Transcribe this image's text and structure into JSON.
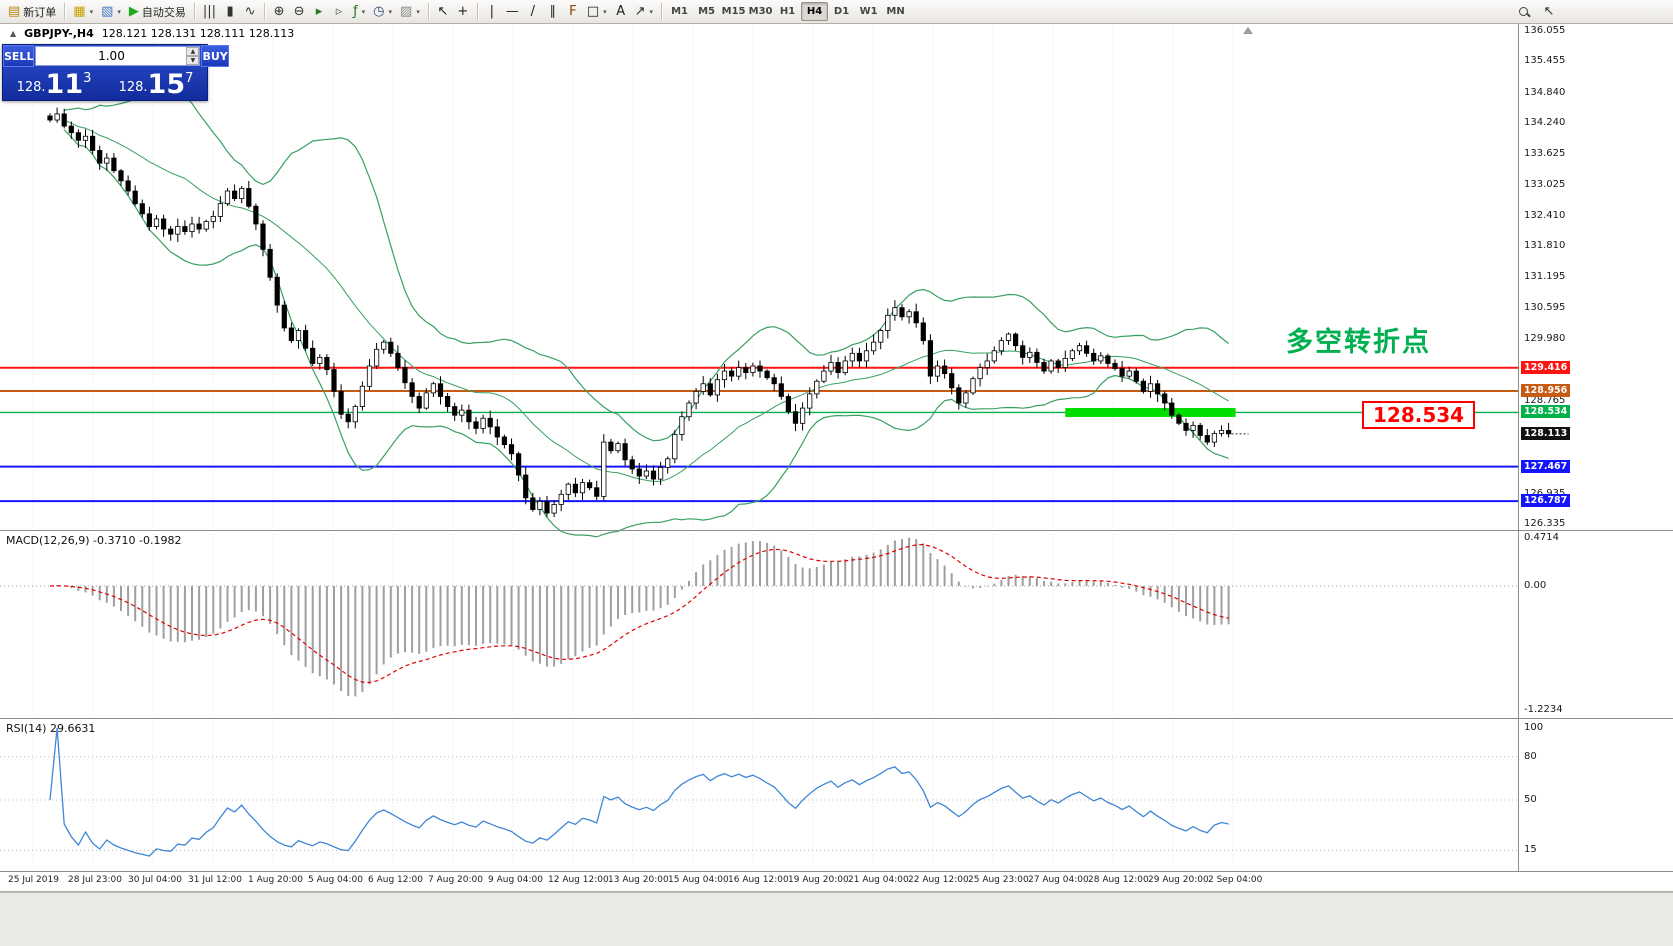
{
  "toolbar": {
    "groups": [
      {
        "items": [
          {
            "name": "new-order",
            "glyph": "▤",
            "glyph_color": "#b8860b",
            "label": "新订单"
          }
        ]
      },
      {
        "items": [
          {
            "name": "new-chart",
            "glyph": "▦",
            "glyph_color": "#c8a000",
            "caret": true
          },
          {
            "name": "profiles",
            "glyph": "▧",
            "glyph_color": "#4477cc",
            "caret": true
          },
          {
            "name": "autotrading",
            "glyph": "▶",
            "glyph_color": "#1daa1d",
            "label": "自动交易"
          }
        ]
      },
      {
        "items": [
          {
            "name": "chart-bars",
            "glyph": "|||",
            "glyph_color": "#333333"
          },
          {
            "name": "chart-candles",
            "glyph": "▮",
            "glyph_color": "#333333"
          },
          {
            "name": "chart-line",
            "glyph": "∿",
            "glyph_color": "#333333"
          }
        ]
      },
      {
        "items": [
          {
            "name": "zoom-in",
            "glyph": "⊕",
            "glyph_color": "#333333"
          },
          {
            "name": "zoom-out",
            "glyph": "⊖",
            "glyph_color": "#333333"
          },
          {
            "name": "auto-scroll",
            "glyph": "▸",
            "glyph_color": "#2a7a2a"
          },
          {
            "name": "chart-shift",
            "glyph": "▹",
            "glyph_color": "#666666"
          },
          {
            "name": "indicators",
            "glyph": "ƒ",
            "glyph_color": "#207020",
            "caret": true
          },
          {
            "name": "periods",
            "glyph": "◷",
            "glyph_color": "#334477",
            "caret": true
          },
          {
            "name": "templates",
            "glyph": "▨",
            "glyph_color": "#888888",
            "caret": true
          }
        ]
      },
      {
        "items": [
          {
            "name": "cursor",
            "glyph": "↖",
            "glyph_color": "#222222"
          },
          {
            "name": "crosshair",
            "glyph": "+",
            "glyph_color": "#222222"
          }
        ]
      },
      {
        "items": [
          {
            "name": "vertical-line",
            "glyph": "|",
            "glyph_color": "#222222"
          },
          {
            "name": "horizontal-line",
            "glyph": "—",
            "glyph_color": "#222222"
          },
          {
            "name": "trendline",
            "glyph": "/",
            "glyph_color": "#222222"
          },
          {
            "name": "channel",
            "glyph": "∥",
            "glyph_color": "#222222"
          },
          {
            "name": "fibonacci",
            "glyph": "F",
            "glyph_color": "#884400"
          },
          {
            "name": "shapes",
            "glyph": "□",
            "glyph_color": "#222222",
            "caret": true
          },
          {
            "name": "text-label",
            "glyph": "A",
            "glyph_color": "#222222"
          },
          {
            "name": "arrows",
            "glyph": "↗",
            "glyph_color": "#222222",
            "caret": true
          }
        ]
      }
    ],
    "timeframes": [
      "M1",
      "M5",
      "M15",
      "M30",
      "H1",
      "H4",
      "D1",
      "W1",
      "MN"
    ],
    "active_timeframe": "H4"
  },
  "symbol_header": {
    "title": "GBPJPY-,H4",
    "ohlc": "128.121 128.131 128.111 128.113"
  },
  "trade_panel": {
    "sell_label": "SELL",
    "buy_label": "BUY",
    "volume": "1.00",
    "sell_price": {
      "prefix": "128.",
      "big": "11",
      "sup": "3"
    },
    "buy_price": {
      "prefix": "128.",
      "big": "15",
      "sup": "7"
    }
  },
  "annotations": {
    "turning_point": "多空转折点",
    "level_callout": "128.534"
  },
  "indicators": {
    "macd_label": "MACD(12,26,9) -0.3710 -0.1982",
    "rsi_label": "RSI(14) 29.6631"
  },
  "price_scale": {
    "plain_labels": [
      "136.055",
      "135.455",
      "134.840",
      "134.240",
      "133.625",
      "133.025",
      "132.410",
      "131.810",
      "131.195",
      "130.595",
      "129.980",
      "128.765",
      "126.935",
      "126.335"
    ],
    "badges": [
      {
        "value": "129.416",
        "color": "#ff1414"
      },
      {
        "value": "128.956",
        "color": "#c65b11"
      },
      {
        "value": "128.534",
        "color": "#00b14a"
      },
      {
        "value": "128.113",
        "color": "#111111"
      },
      {
        "value": "127.467",
        "color": "#1414ff"
      },
      {
        "value": "126.787",
        "color": "#1414ff"
      }
    ]
  },
  "macd_scale": {
    "max": "0.4714",
    "zero": "0.00",
    "min": "-1.2234"
  },
  "rsi_scale": {
    "labels": [
      "100",
      "80",
      "50",
      "15"
    ]
  },
  "time_axis": [
    "25 Jul 2019",
    "28 Jul 23:00",
    "30 Jul 04:00",
    "31 Jul 12:00",
    "1 Aug 20:00",
    "5 Aug 04:00",
    "6 Aug 12:00",
    "7 Aug 20:00",
    "9 Aug 04:00",
    "12 Aug 12:00",
    "13 Aug 20:00",
    "15 Aug 04:00",
    "16 Aug 12:00",
    "19 Aug 20:00",
    "21 Aug 04:00",
    "22 Aug 12:00",
    "25 Aug 23:00",
    "27 Aug 04:00",
    "28 Aug 12:00",
    "29 Aug 20:00",
    "2 Sep 04:00"
  ],
  "chart_data": {
    "type": "candlestick",
    "symbol": "GBPJPY-",
    "timeframe": "H4",
    "title": "GBPJPY-,H4",
    "ohlc_display": {
      "open": "128.121",
      "high": "128.131",
      "low": "128.111",
      "close": "128.113"
    },
    "last_price": 128.113,
    "visible_price_range": [
      126.335,
      136.055
    ],
    "closes": [
      134.3,
      134.42,
      134.18,
      134.05,
      133.9,
      133.98,
      133.7,
      133.45,
      133.55,
      133.3,
      133.1,
      132.9,
      132.65,
      132.45,
      132.2,
      132.35,
      132.15,
      132.05,
      132.2,
      132.1,
      132.25,
      132.15,
      132.3,
      132.4,
      132.65,
      132.9,
      132.75,
      132.95,
      132.6,
      132.25,
      131.75,
      131.2,
      130.65,
      130.2,
      129.95,
      130.15,
      129.8,
      129.5,
      129.62,
      129.38,
      128.95,
      128.5,
      128.35,
      128.65,
      129.05,
      129.45,
      129.78,
      129.92,
      129.7,
      129.42,
      129.12,
      128.85,
      128.62,
      128.92,
      129.1,
      128.85,
      128.65,
      128.48,
      128.58,
      128.35,
      128.22,
      128.42,
      128.25,
      128.05,
      127.9,
      127.72,
      127.3,
      126.85,
      126.62,
      126.78,
      126.55,
      126.72,
      126.92,
      127.12,
      126.95,
      127.15,
      127.05,
      126.88,
      127.95,
      127.78,
      127.92,
      127.6,
      127.42,
      127.28,
      127.38,
      127.22,
      127.45,
      127.62,
      128.1,
      128.45,
      128.72,
      128.95,
      129.1,
      128.88,
      129.18,
      129.35,
      129.25,
      129.42,
      129.32,
      129.45,
      129.35,
      129.22,
      129.1,
      128.85,
      128.55,
      128.32,
      128.62,
      128.9,
      129.15,
      129.35,
      129.52,
      129.32,
      129.55,
      129.7,
      129.55,
      129.75,
      129.92,
      130.15,
      130.45,
      130.6,
      130.42,
      130.52,
      130.3,
      129.95,
      129.25,
      129.45,
      129.3,
      129.02,
      128.72,
      128.92,
      129.2,
      129.42,
      129.55,
      129.75,
      129.95,
      130.08,
      129.85,
      129.62,
      129.72,
      129.52,
      129.35,
      129.55,
      129.42,
      129.6,
      129.75,
      129.85,
      129.7,
      129.55,
      129.65,
      129.5,
      129.4,
      129.25,
      129.35,
      129.15,
      128.95,
      129.1,
      128.9,
      128.72,
      128.48,
      128.32,
      128.18,
      128.28,
      128.08,
      127.95,
      128.12,
      128.18,
      128.113
    ],
    "hlines": [
      {
        "price": 129.416,
        "color": "#ff1414",
        "width": 2
      },
      {
        "price": 128.956,
        "color": "#c65b11",
        "width": 2
      },
      {
        "price": 128.534,
        "color": "#00b14a",
        "width": 1.4
      },
      {
        "price": 127.467,
        "color": "#1414ff",
        "width": 2
      },
      {
        "price": 126.787,
        "color": "#1414ff",
        "width": 2
      }
    ],
    "support_zone": {
      "price": 128.534,
      "start_index": 143,
      "color": "#00dd00",
      "thickness": 9
    },
    "overlays": {
      "bollinger_period": 20,
      "bollinger_dev": 2
    },
    "macd": {
      "params": "12,26,9",
      "value": -0.371,
      "signal": -0.1982,
      "scale_max": 0.4714,
      "scale_min": -1.2234
    },
    "rsi": {
      "period": 14,
      "value": 29.6631,
      "levels": [
        80,
        50,
        15
      ]
    },
    "colors": {
      "candle_up": "#ffffff",
      "candle_down": "#000000",
      "candle_border": "#000000",
      "bollinger": "#38a060",
      "macd_hist": "#9f9f9f",
      "macd_signal": "#e00000",
      "rsi_line": "#3f86d6",
      "grid": "#dcdcdc",
      "separator": "#8c8c8c"
    }
  }
}
